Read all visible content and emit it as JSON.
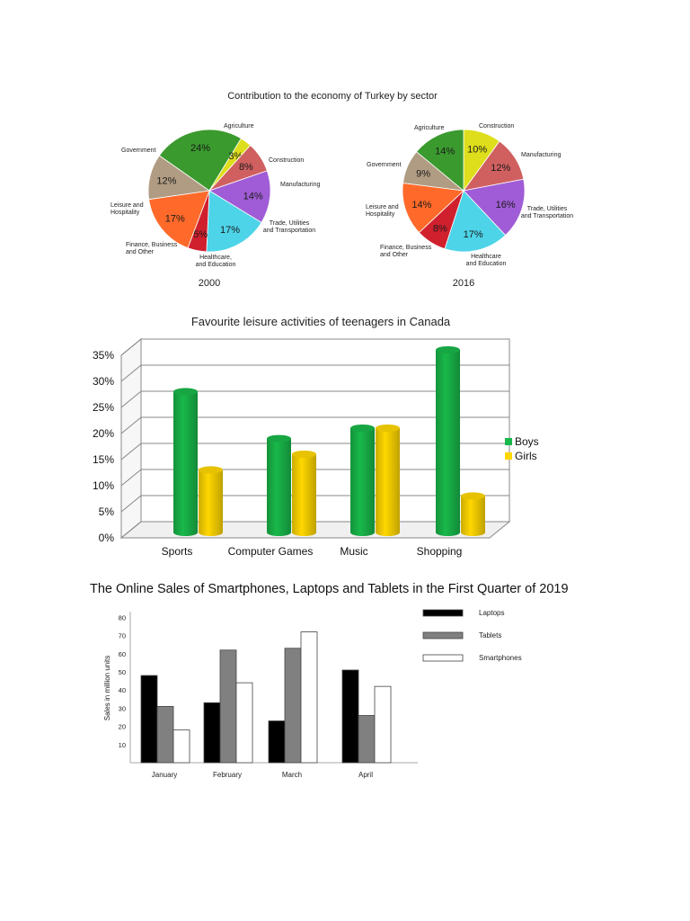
{
  "chart_data": [
    {
      "type": "pie",
      "title": "Contribution to the economy of Turkey by sector",
      "pies": [
        {
          "label": "2000",
          "slices": [
            {
              "name": "Agriculture",
              "value": 24,
              "label": "24%",
              "color": "#3a9a2e"
            },
            {
              "name": "Construction",
              "value": 3,
              "label": "3%",
              "color": "#dede1c"
            },
            {
              "name": "Manufacturing",
              "value": 8,
              "label": "8%",
              "color": "#d06060"
            },
            {
              "name": "Trade, Utilities and Transportation",
              "value": 14,
              "label": "14%",
              "color": "#a05cd6"
            },
            {
              "name": "Healthcare, and Education",
              "value": 17,
              "label": "17%",
              "color": "#4dd4e8"
            },
            {
              "name": "Finance, Business and Other",
              "value": 5,
              "label": "5%",
              "color": "#d0202e"
            },
            {
              "name": "Leisure and Hospitality",
              "value": 17,
              "label": "17%",
              "color": "#ff6a2a"
            },
            {
              "name": "Government",
              "value": 12,
              "label": "12%",
              "color": "#b09c82"
            }
          ]
        },
        {
          "label": "2016",
          "slices": [
            {
              "name": "Construction",
              "value": 10,
              "label": "10%",
              "color": "#dede1c"
            },
            {
              "name": "Manufacturing",
              "value": 12,
              "label": "12%",
              "color": "#d06060"
            },
            {
              "name": "Trade, Utilities and Transportation",
              "value": 16,
              "label": "16%",
              "color": "#a05cd6"
            },
            {
              "name": "Healthcare and Education",
              "value": 17,
              "label": "17%",
              "color": "#4dd4e8"
            },
            {
              "name": "Finance, Business and Other",
              "value": 8,
              "label": "8%",
              "color": "#d0202e"
            },
            {
              "name": "Leisure and Hospitality",
              "value": 14,
              "label": "14%",
              "color": "#ff6a2a"
            },
            {
              "name": "Government",
              "value": 9,
              "label": "9%",
              "color": "#b09c82"
            },
            {
              "name": "Agriculture",
              "value": 14,
              "label": "14%",
              "color": "#3a9a2e"
            }
          ]
        }
      ]
    },
    {
      "type": "bar",
      "title": "Favourite leisure activities of teenagers in Canada",
      "categories": [
        "Sports",
        "Computer Games",
        "Music",
        "Shopping"
      ],
      "series": [
        {
          "name": "Boys",
          "values": [
            27,
            18,
            20,
            35
          ],
          "color": "#19b84a"
        },
        {
          "name": "Girls",
          "values": [
            12,
            15,
            20,
            7
          ],
          "color": "#ffd700"
        }
      ],
      "ylim": [
        0,
        35
      ],
      "yticks": [
        "0%",
        "5%",
        "10%",
        "15%",
        "20%",
        "25%",
        "30%",
        "35%"
      ],
      "grid": true,
      "legend": "right"
    },
    {
      "type": "bar",
      "title": "The Online Sales of Smartphones, Laptops and Tablets in the First Quarter of 2019",
      "ylabel": "Sales in million units",
      "categories": [
        "January",
        "February",
        "March",
        "April"
      ],
      "series": [
        {
          "name": "Laptops",
          "values": [
            48,
            33,
            23,
            51
          ],
          "color": "#000000"
        },
        {
          "name": "Tablets",
          "values": [
            31,
            62,
            63,
            26
          ],
          "color": "#808080"
        },
        {
          "name": "Smartphones",
          "values": [
            18,
            44,
            72,
            42
          ],
          "color": "#ffffff"
        }
      ],
      "ylim": [
        0,
        80
      ],
      "yticks": [
        "80",
        "70",
        "60",
        "50",
        "40",
        "30",
        "20",
        "10"
      ],
      "legend": "top-right"
    }
  ]
}
